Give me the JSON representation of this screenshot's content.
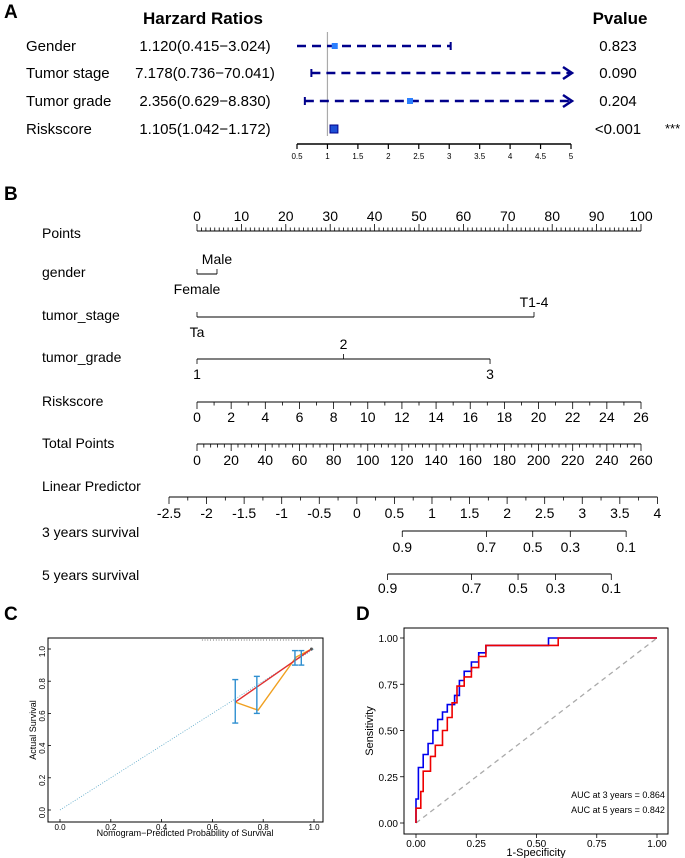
{
  "chart_data": [
    {
      "panel": "A",
      "type": "forest",
      "title": "Harzard Ratios",
      "pvalue_header": "Pvalue",
      "axis_ticks": [
        "0.5",
        "1",
        "1.5",
        "2",
        "2.5",
        "3",
        "3.5",
        "4",
        "4.5",
        "5"
      ],
      "axis_range": [
        0.5,
        5
      ],
      "reference_line": 1,
      "rows": [
        {
          "label": "Gender",
          "hr_text": "1.120(0.415−3.024)",
          "hr": 1.12,
          "low": 0.415,
          "high": 3.024,
          "p": "0.823",
          "sig": ""
        },
        {
          "label": "Tumor stage",
          "hr_text": "7.178(0.736−70.041)",
          "hr": 7.178,
          "low": 0.736,
          "high": 70.041,
          "p": "0.090",
          "sig": ""
        },
        {
          "label": "Tumor grade",
          "hr_text": "2.356(0.629−8.830)",
          "hr": 2.356,
          "low": 0.629,
          "high": 8.83,
          "p": "0.204",
          "sig": ""
        },
        {
          "label": "Riskscore",
          "hr_text": "1.105(1.042−1.172)",
          "hr": 1.105,
          "low": 1.042,
          "high": 1.172,
          "p": "<0.001",
          "sig": "***"
        }
      ]
    },
    {
      "panel": "B",
      "type": "nomogram",
      "rows": [
        {
          "label": "Points",
          "ticks": [
            {
              "v": 0,
              "t": "0"
            },
            {
              "v": 10,
              "t": "10"
            },
            {
              "v": 20,
              "t": "20"
            },
            {
              "v": 30,
              "t": "30"
            },
            {
              "v": 40,
              "t": "40"
            },
            {
              "v": 50,
              "t": "50"
            },
            {
              "v": 60,
              "t": "60"
            },
            {
              "v": 70,
              "t": "70"
            },
            {
              "v": 80,
              "t": "80"
            },
            {
              "v": 90,
              "t": "90"
            },
            {
              "v": 100,
              "t": "100"
            }
          ],
          "range": [
            0,
            100
          ],
          "minor": 1
        },
        {
          "label": "gender",
          "levels": [
            {
              "t": "Female",
              "pts": 0
            },
            {
              "t": "Male",
              "pts": 4.5
            }
          ]
        },
        {
          "label": "tumor_stage",
          "levels": [
            {
              "t": "Ta",
              "pts": 0
            },
            {
              "t": "T1-4",
              "pts": 75.9
            }
          ]
        },
        {
          "label": "tumor_grade",
          "levels": [
            {
              "t": "1",
              "pts": 0
            },
            {
              "t": "2",
              "pts": 33
            },
            {
              "t": "3",
              "pts": 66
            }
          ]
        },
        {
          "label": "Riskscore",
          "ticks": [
            {
              "v": 0,
              "t": "0"
            },
            {
              "v": 2,
              "t": "2"
            },
            {
              "v": 4,
              "t": "4"
            },
            {
              "v": 6,
              "t": "6"
            },
            {
              "v": 8,
              "t": "8"
            },
            {
              "v": 10,
              "t": "10"
            },
            {
              "v": 12,
              "t": "12"
            },
            {
              "v": 14,
              "t": "14"
            },
            {
              "v": 16,
              "t": "16"
            },
            {
              "v": 18,
              "t": "18"
            },
            {
              "v": 20,
              "t": "20"
            },
            {
              "v": 22,
              "t": "22"
            },
            {
              "v": 24,
              "t": "24"
            },
            {
              "v": 26,
              "t": "26"
            }
          ],
          "range": [
            0,
            26
          ],
          "minor": 1,
          "points_span": [
            0,
            100
          ]
        },
        {
          "label": "Total Points",
          "ticks": [
            {
              "v": 0,
              "t": "0"
            },
            {
              "v": 20,
              "t": "20"
            },
            {
              "v": 40,
              "t": "40"
            },
            {
              "v": 60,
              "t": "60"
            },
            {
              "v": 80,
              "t": "80"
            },
            {
              "v": 100,
              "t": "100"
            },
            {
              "v": 120,
              "t": "120"
            },
            {
              "v": 140,
              "t": "140"
            },
            {
              "v": 160,
              "t": "160"
            },
            {
              "v": 180,
              "t": "180"
            },
            {
              "v": 200,
              "t": "200"
            },
            {
              "v": 220,
              "t": "220"
            },
            {
              "v": 240,
              "t": "240"
            },
            {
              "v": 260,
              "t": "260"
            }
          ],
          "range": [
            0,
            260
          ],
          "minor": 4
        },
        {
          "label": "Linear Predictor",
          "ticks": [
            {
              "v": -2.5,
              "t": "-2.5"
            },
            {
              "v": -2,
              "t": "-2"
            },
            {
              "v": -1.5,
              "t": "-1.5"
            },
            {
              "v": -1,
              "t": "-1"
            },
            {
              "v": -0.5,
              "t": "-0.5"
            },
            {
              "v": 0,
              "t": "0"
            },
            {
              "v": 0.5,
              "t": "0.5"
            },
            {
              "v": 1,
              "t": "1"
            },
            {
              "v": 1.5,
              "t": "1.5"
            },
            {
              "v": 2,
              "t": "2"
            },
            {
              "v": 2.5,
              "t": "2.5"
            },
            {
              "v": 3,
              "t": "3"
            },
            {
              "v": 3.5,
              "t": "3.5"
            },
            {
              "v": 4,
              "t": "4"
            }
          ],
          "range": [
            -2.5,
            4
          ],
          "minor": 0.25,
          "total_span": [
            -16.4,
            269.6
          ]
        },
        {
          "label": "3 years survival",
          "labels": [
            {
              "t": "0.9",
              "total": 120.2
            },
            {
              "t": "0.7",
              "total": 169.5
            },
            {
              "t": "0.5",
              "total": 196.6
            },
            {
              "t": "0.3",
              "total": 218.6
            },
            {
              "t": "0.1",
              "total": 251.3
            }
          ]
        },
        {
          "label": "5 years survival",
          "labels": [
            {
              "t": "0.9",
              "total": 111.6
            },
            {
              "t": "0.7",
              "total": 160.8
            },
            {
              "t": "0.5",
              "total": 188.0
            },
            {
              "t": "0.3",
              "total": 209.9
            },
            {
              "t": "0.1",
              "total": 242.6
            }
          ]
        }
      ]
    },
    {
      "panel": "C",
      "type": "calibration",
      "xlabel": "Nomogram−Predicted Probability of Survival",
      "ylabel": "Actual Survival",
      "xticks": [
        "0.0",
        "0.2",
        "0.4",
        "0.6",
        "0.8",
        "1.0"
      ],
      "yticks": [
        "0.0",
        "0.2",
        "0.4",
        "0.6",
        "0.8",
        "1.0"
      ],
      "xlim": [
        0,
        1
      ],
      "ylim": [
        0,
        1
      ],
      "ideal_line": [
        [
          0,
          0
        ],
        [
          1,
          1
        ]
      ],
      "apparent": [
        [
          0.69,
          0.67
        ],
        [
          0.78,
          0.62
        ],
        [
          0.93,
          0.95
        ],
        [
          0.99,
          1.0
        ]
      ],
      "bias_corrected": [
        [
          0.69,
          0.67
        ],
        [
          0.78,
          0.8
        ],
        [
          0.93,
          0.95
        ],
        [
          0.99,
          1.0
        ]
      ],
      "error_bars": [
        {
          "x": 0.69,
          "y": 0.67,
          "lo": 0.54,
          "hi": 0.81
        },
        {
          "x": 0.775,
          "y": 0.71,
          "lo": 0.6,
          "hi": 0.83
        },
        {
          "x": 0.925,
          "y": 0.95,
          "lo": 0.9,
          "hi": 0.99
        },
        {
          "x": 0.95,
          "y": 0.95,
          "lo": 0.9,
          "hi": 0.99
        }
      ]
    },
    {
      "panel": "D",
      "type": "roc",
      "xlabel": "1-Specificity",
      "ylabel": "Sensitivity",
      "xticks": [
        "0.00",
        "0.25",
        "0.50",
        "0.75",
        "1.00"
      ],
      "yticks": [
        "0.00",
        "0.25",
        "0.50",
        "0.75",
        "1.00"
      ],
      "xlim": [
        0,
        1
      ],
      "ylim": [
        0,
        1
      ],
      "series": [
        {
          "name": "AUC at 3 years = 0.864",
          "color": "#0000ee",
          "points": [
            [
              0,
              0
            ],
            [
              0,
              0.13
            ],
            [
              0.01,
              0.13
            ],
            [
              0.01,
              0.3
            ],
            [
              0.03,
              0.3
            ],
            [
              0.03,
              0.37
            ],
            [
              0.05,
              0.37
            ],
            [
              0.05,
              0.43
            ],
            [
              0.07,
              0.43
            ],
            [
              0.07,
              0.5
            ],
            [
              0.09,
              0.5
            ],
            [
              0.09,
              0.56
            ],
            [
              0.11,
              0.56
            ],
            [
              0.11,
              0.6
            ],
            [
              0.13,
              0.6
            ],
            [
              0.13,
              0.64
            ],
            [
              0.16,
              0.64
            ],
            [
              0.16,
              0.69
            ],
            [
              0.18,
              0.69
            ],
            [
              0.18,
              0.77
            ],
            [
              0.2,
              0.77
            ],
            [
              0.2,
              0.82
            ],
            [
              0.23,
              0.82
            ],
            [
              0.23,
              0.87
            ],
            [
              0.26,
              0.87
            ],
            [
              0.26,
              0.92
            ],
            [
              0.29,
              0.92
            ],
            [
              0.29,
              0.96
            ],
            [
              0.55,
              0.96
            ],
            [
              0.55,
              1.0
            ],
            [
              1.0,
              1.0
            ]
          ]
        },
        {
          "name": "AUC at 5 years = 0.842",
          "color": "#ee0000",
          "points": [
            [
              0,
              0
            ],
            [
              0,
              0.08
            ],
            [
              0.02,
              0.08
            ],
            [
              0.02,
              0.17
            ],
            [
              0.03,
              0.17
            ],
            [
              0.03,
              0.28
            ],
            [
              0.06,
              0.28
            ],
            [
              0.06,
              0.36
            ],
            [
              0.08,
              0.36
            ],
            [
              0.08,
              0.42
            ],
            [
              0.11,
              0.42
            ],
            [
              0.11,
              0.5
            ],
            [
              0.13,
              0.5
            ],
            [
              0.13,
              0.57
            ],
            [
              0.15,
              0.57
            ],
            [
              0.15,
              0.65
            ],
            [
              0.17,
              0.65
            ],
            [
              0.17,
              0.74
            ],
            [
              0.2,
              0.74
            ],
            [
              0.2,
              0.79
            ],
            [
              0.23,
              0.79
            ],
            [
              0.23,
              0.84
            ],
            [
              0.26,
              0.84
            ],
            [
              0.26,
              0.9
            ],
            [
              0.29,
              0.9
            ],
            [
              0.29,
              0.96
            ],
            [
              0.59,
              0.96
            ],
            [
              0.59,
              1.0
            ],
            [
              1.0,
              1.0
            ]
          ]
        }
      ],
      "reference_diagonal": true
    }
  ]
}
